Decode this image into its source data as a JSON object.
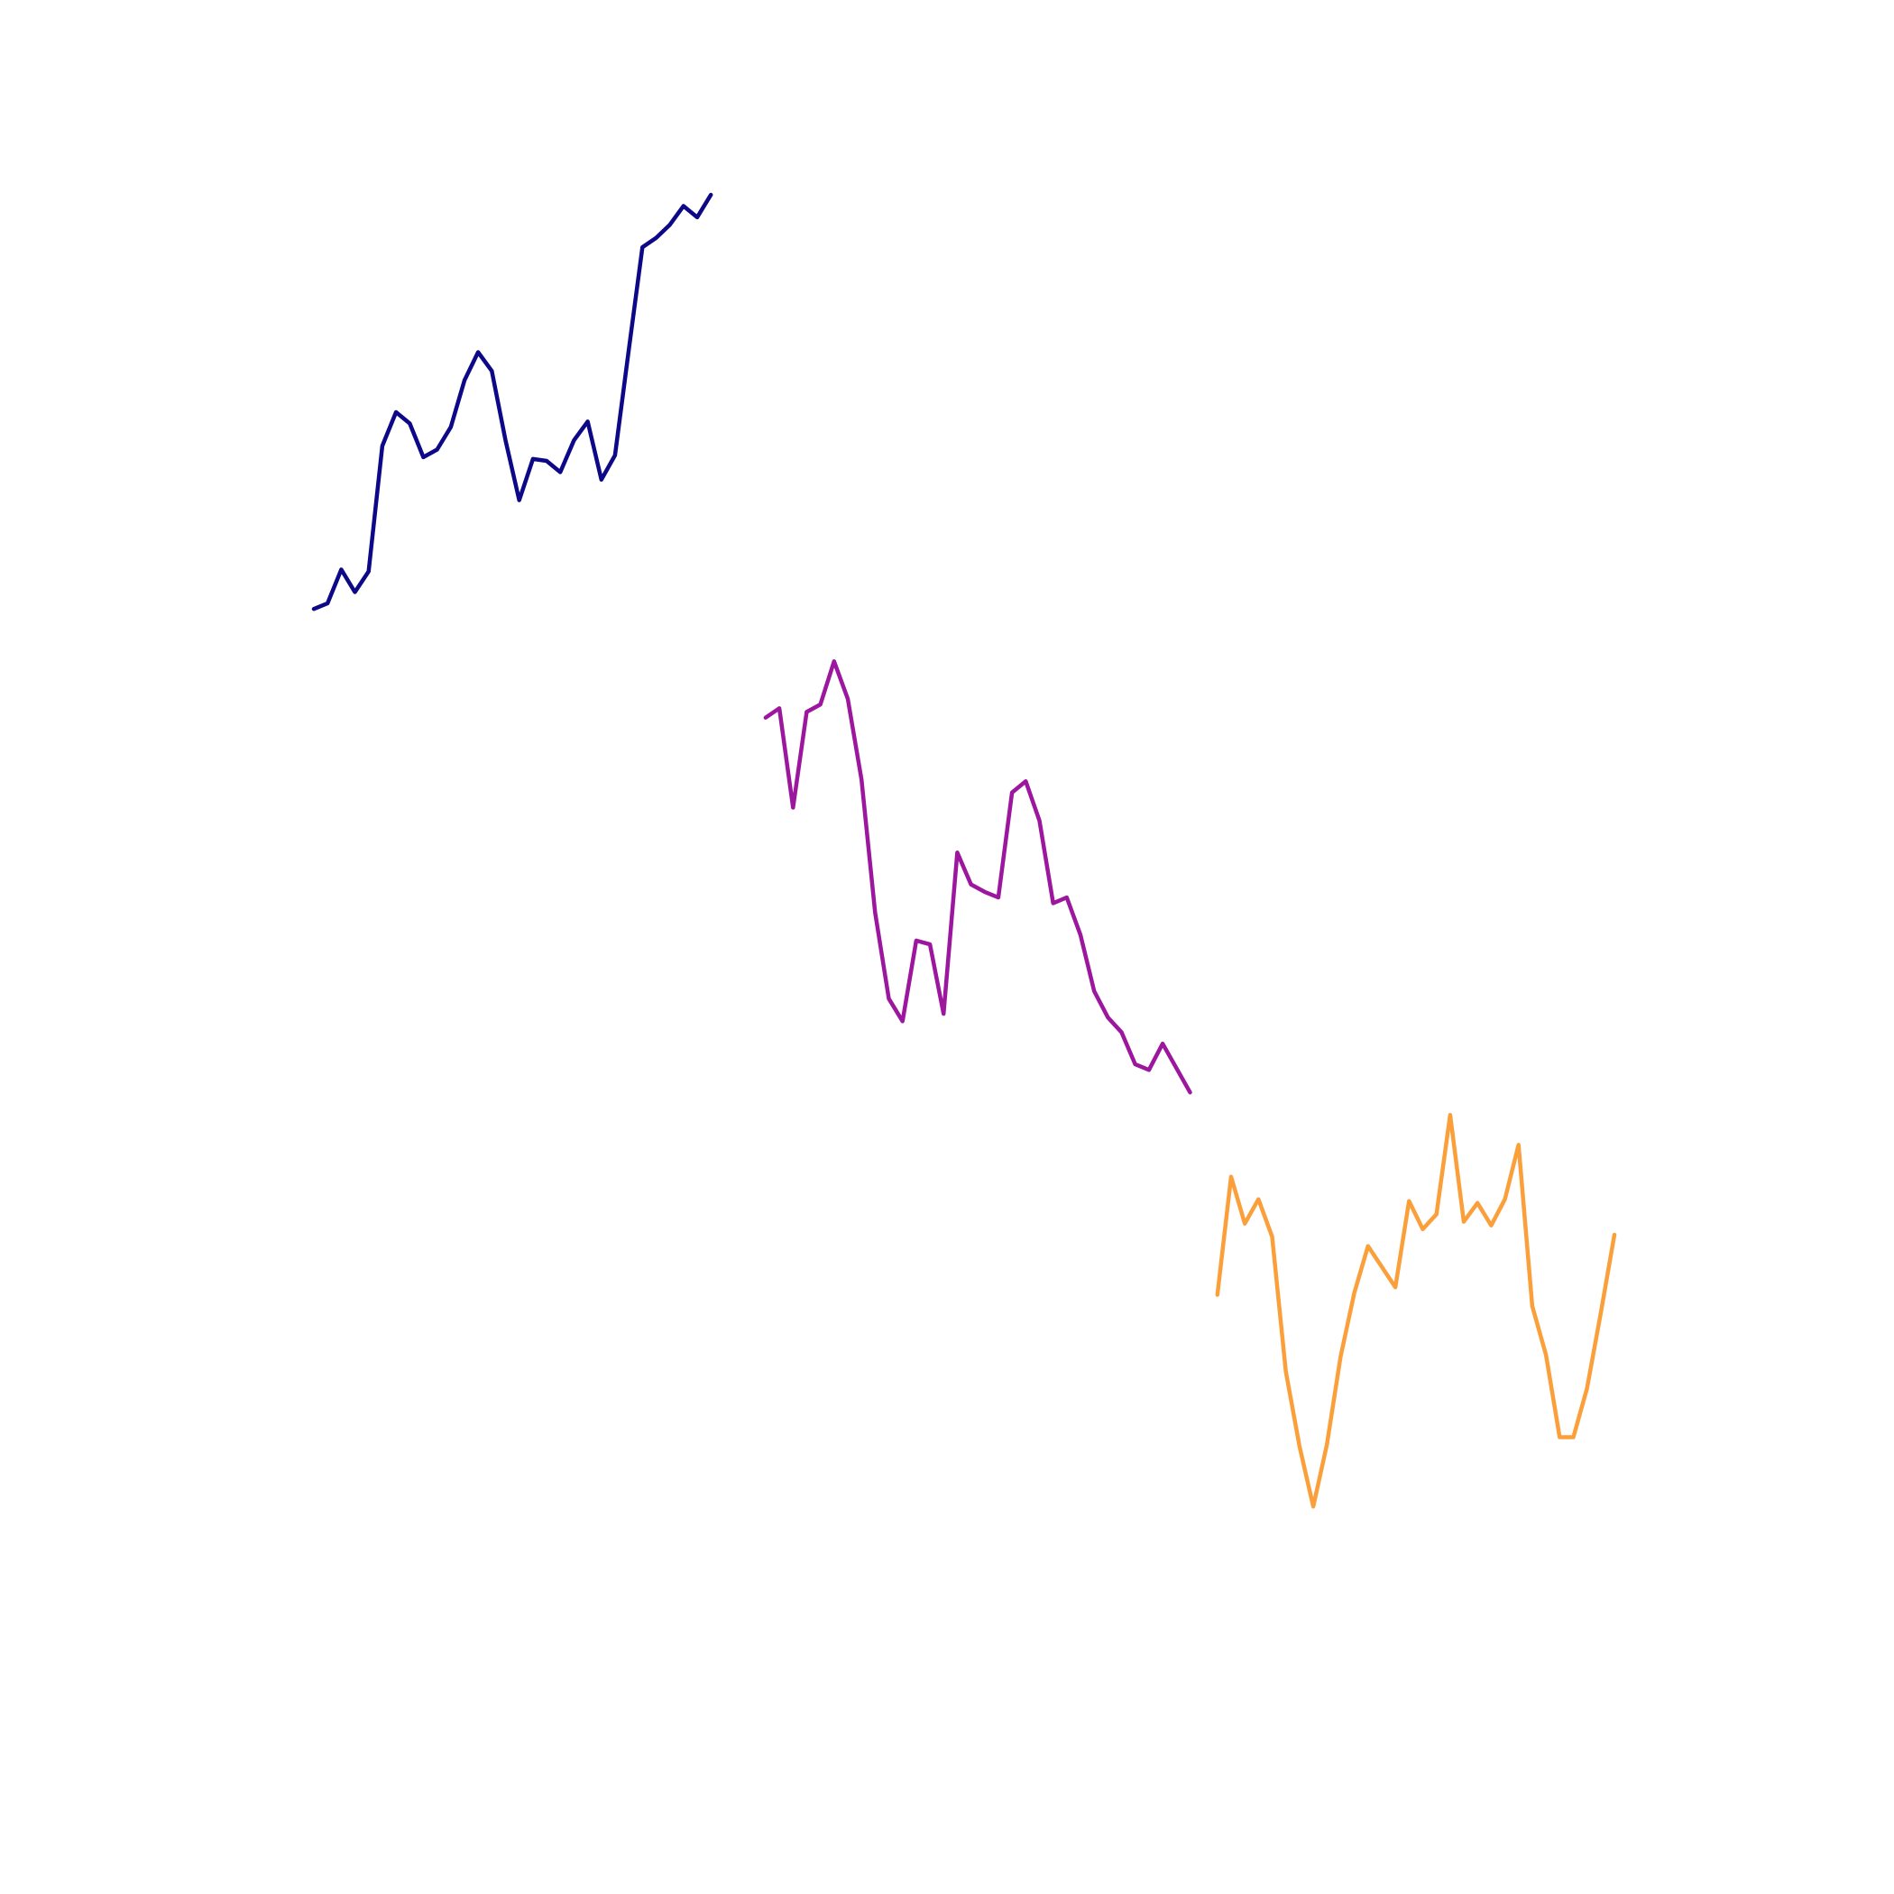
{
  "chart_data": {
    "type": "line",
    "title": "",
    "xlabel": "",
    "ylabel": "",
    "grid": false,
    "legend": "none",
    "axes_visible": false,
    "xlim": [
      0,
      95
    ],
    "ylim": [
      0,
      90
    ],
    "series": [
      {
        "color": "#0d0887",
        "x": [
          0,
          1,
          2,
          3,
          4,
          5,
          6,
          7,
          8,
          9,
          10,
          11,
          12,
          13,
          14,
          15,
          16,
          17,
          18,
          19,
          20,
          21,
          22,
          23,
          24,
          25,
          26,
          27,
          28,
          29
        ],
        "y": [
          62.8,
          63.1,
          64.9,
          63.7,
          64.8,
          71.5,
          73.3,
          72.7,
          70.9,
          71.3,
          72.5,
          75.0,
          76.5,
          75.5,
          71.8,
          68.6,
          70.8,
          70.7,
          70.1,
          71.8,
          72.8,
          69.7,
          71.0,
          76.6,
          82.1,
          82.6,
          83.3,
          84.3,
          83.7,
          84.9
        ]
      },
      {
        "color": "#9c179e",
        "x": [
          33,
          34,
          35,
          36,
          37,
          38,
          39,
          40,
          41,
          42,
          43,
          44,
          45,
          46,
          47,
          48,
          49,
          50,
          51,
          52,
          53,
          54,
          55,
          56,
          57,
          58,
          59,
          60,
          61,
          62,
          63,
          64
        ],
        "y": [
          57.0,
          57.5,
          52.2,
          57.3,
          57.7,
          60.0,
          58.0,
          53.7,
          46.6,
          42.0,
          40.8,
          45.1,
          44.9,
          41.2,
          49.8,
          48.1,
          47.7,
          47.4,
          53.0,
          53.6,
          51.5,
          47.1,
          47.4,
          45.4,
          42.4,
          41.0,
          40.2,
          38.5,
          38.2,
          39.6,
          38.3,
          37.0
        ]
      },
      {
        "color": "#fb9f3a",
        "x": [
          66,
          67,
          68,
          69,
          70,
          71,
          72,
          73,
          74,
          75,
          76,
          77,
          78,
          79,
          80,
          81,
          82,
          83,
          84,
          85,
          86,
          87,
          88,
          89,
          90,
          91,
          92,
          93,
          94,
          95
        ],
        "y": [
          26.2,
          32.5,
          30.0,
          31.3,
          29.3,
          22.1,
          18.1,
          14.9,
          18.2,
          22.9,
          26.3,
          28.8,
          27.7,
          26.6,
          31.2,
          29.7,
          30.5,
          35.8,
          30.1,
          31.1,
          29.9,
          31.3,
          34.2,
          25.6,
          23.0,
          18.6,
          18.6,
          21.2,
          25.2,
          29.4
        ]
      }
    ]
  }
}
